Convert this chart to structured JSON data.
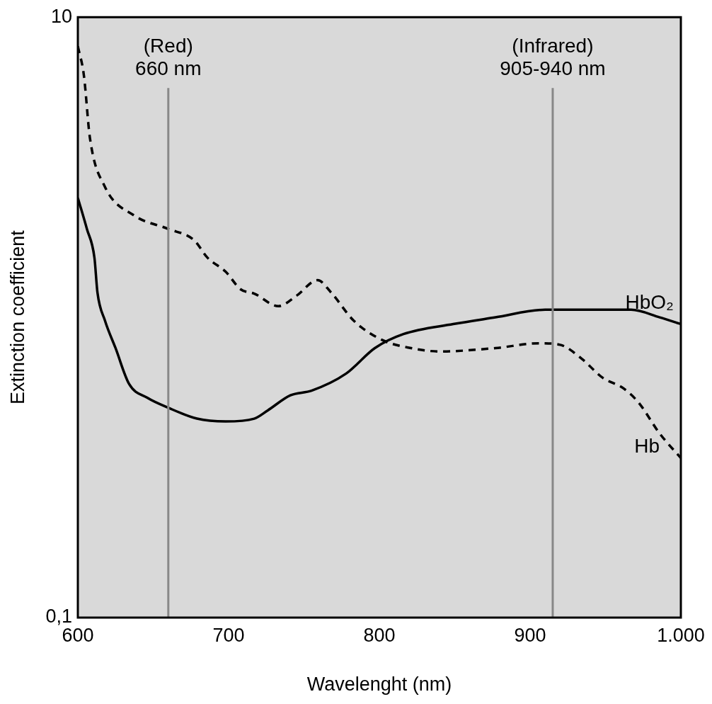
{
  "chart_data": {
    "type": "line",
    "xlabel": "Wavelenght (nm)",
    "ylabel": "Extinction coefficient",
    "xlim": [
      600,
      1000
    ],
    "xticks": [
      600,
      700,
      800,
      900,
      {
        "value": 1000,
        "label": "1.000"
      }
    ],
    "ylim": [
      0.1,
      10
    ],
    "yticks": [
      {
        "value": 0.1,
        "label": "0,1"
      },
      10
    ],
    "log": "y",
    "grid": false,
    "legend": false,
    "marker": "none",
    "ref_lines": [
      {
        "axis": "x",
        "value": 660,
        "label": "(Red)\n660 nm",
        "color": "#888888"
      },
      {
        "axis": "x",
        "value": 915,
        "label": "(Infrared)\n905-940 nm",
        "color": "#888888"
      }
    ],
    "series": [
      {
        "name": "HbO₂",
        "color": "#000000",
        "line_style": "solid",
        "x": [
          600,
          606,
          611,
          613,
          618,
          625,
          634,
          646,
          660,
          679,
          698,
          717,
          726,
          741,
          755,
          778,
          797,
          816,
          849,
          877,
          910,
          967,
          986,
          1000
        ],
        "values": [
          2.5,
          1.97,
          1.58,
          1.21,
          0.975,
          0.79,
          0.6,
          0.54,
          0.5,
          0.46,
          0.45,
          0.46,
          0.49,
          0.55,
          0.57,
          0.65,
          0.79,
          0.88,
          0.95,
          1.0,
          1.06,
          1.06,
          1.0,
          0.95
        ]
      },
      {
        "name": "Hb",
        "color": "#000000",
        "line_style": "dashed",
        "x": [
          600,
          604,
          608,
          618,
          637,
          660,
          677,
          686,
          698,
          708,
          717,
          733,
          745,
          759,
          768,
          783,
          802,
          821,
          840,
          877,
          906,
          920,
          934,
          948,
          962,
          972,
          986,
          1000
        ],
        "values": [
          8,
          6.4,
          3.96,
          2.72,
          2.19,
          1.97,
          1.81,
          1.58,
          1.42,
          1.24,
          1.2,
          1.09,
          1.18,
          1.33,
          1.21,
          0.975,
          0.84,
          0.79,
          0.77,
          0.79,
          0.82,
          0.81,
          0.73,
          0.63,
          0.58,
          0.52,
          0.41,
          0.34
        ]
      }
    ]
  }
}
